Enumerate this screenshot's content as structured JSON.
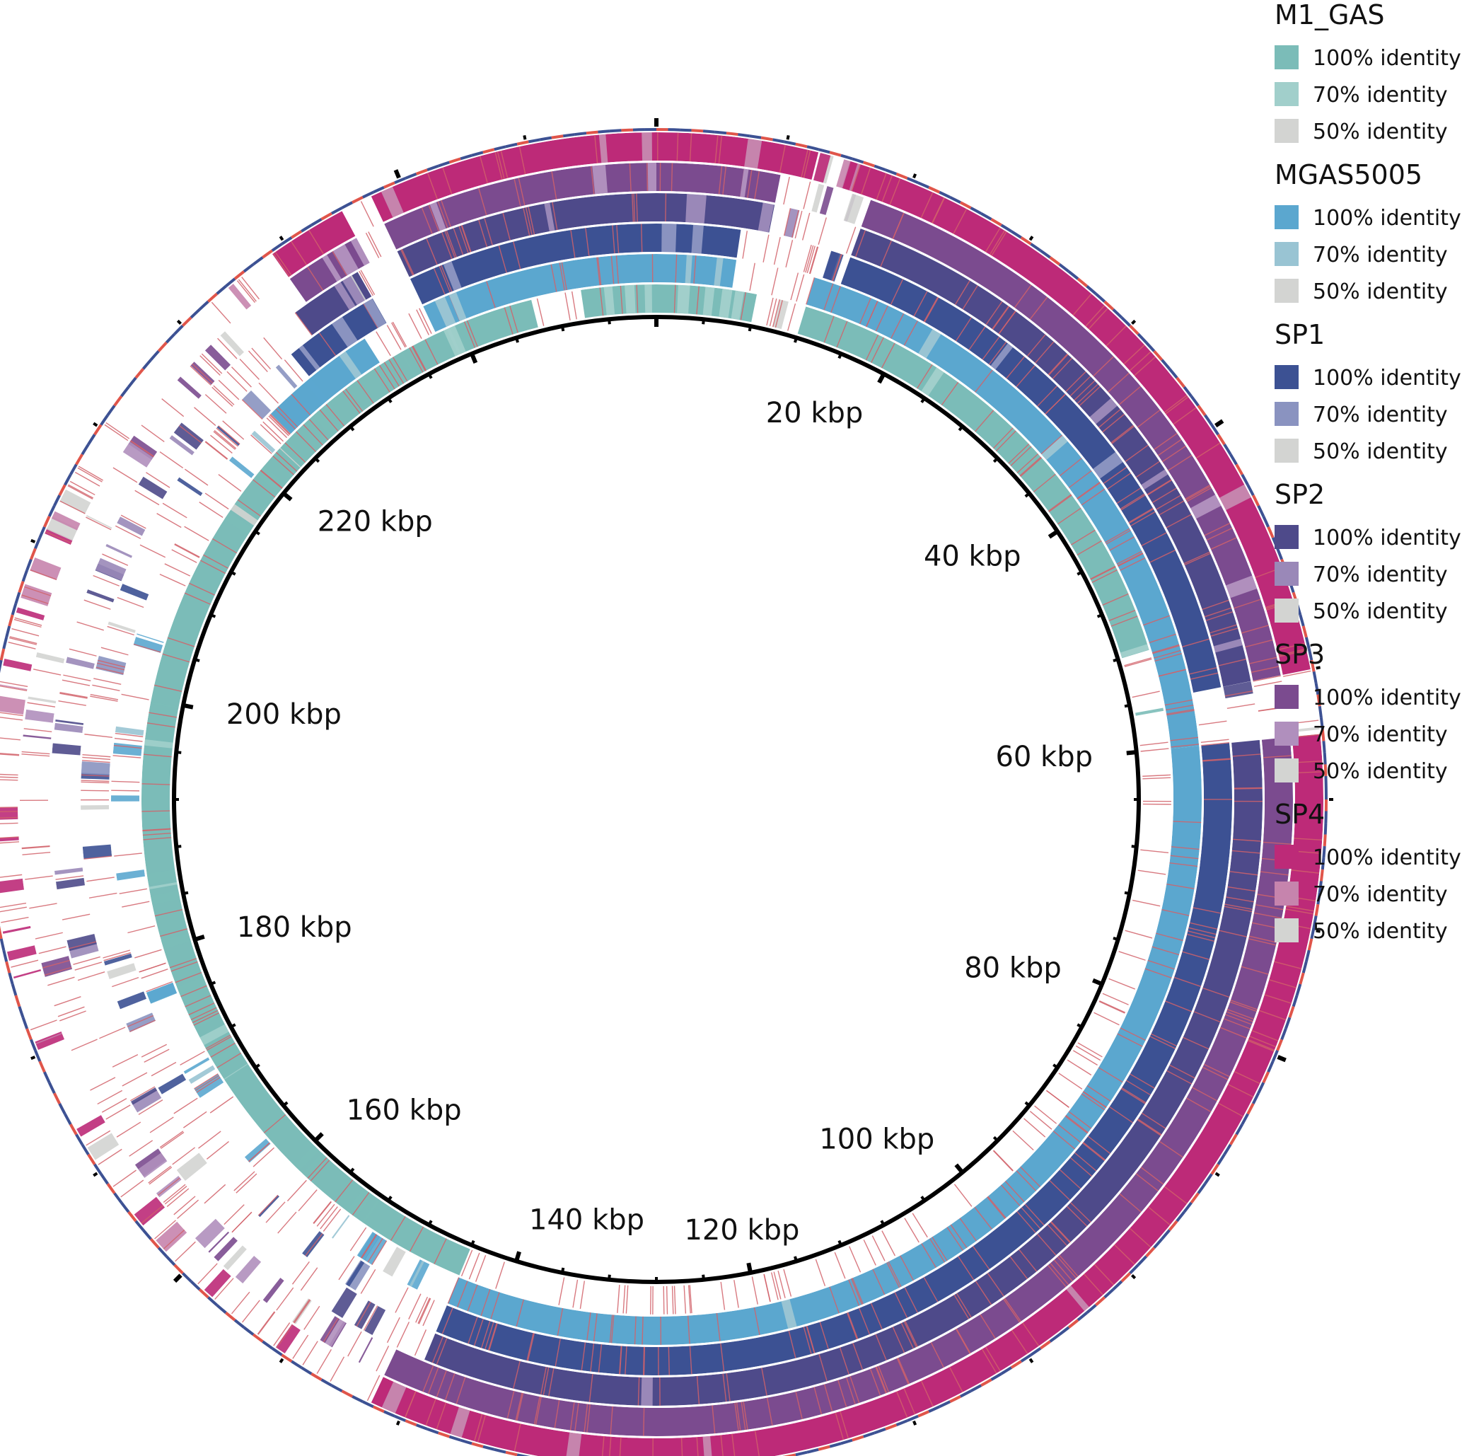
{
  "figure": {
    "type": "circular-blast-ring",
    "genome_size_kbp": 256,
    "ticks": [
      {
        "kbp": 20,
        "label": "20 kbp"
      },
      {
        "kbp": 40,
        "label": "40 kbp"
      },
      {
        "kbp": 60,
        "label": "60 kbp"
      },
      {
        "kbp": 80,
        "label": "80 kbp"
      },
      {
        "kbp": 100,
        "label": "100 kbp"
      },
      {
        "kbp": 120,
        "label": "120 kbp"
      },
      {
        "kbp": 140,
        "label": "140 kbp"
      },
      {
        "kbp": 160,
        "label": "160 kbp"
      },
      {
        "kbp": 180,
        "label": "180 kbp"
      },
      {
        "kbp": 200,
        "label": "200 kbp"
      },
      {
        "kbp": 220,
        "label": "220 kbp"
      }
    ],
    "rings": [
      {
        "name": "M1_GAS",
        "colors": {
          "100": "#7bbcb8",
          "70": "#a1cfcb",
          "50": "#d3d4d2"
        },
        "legend": [
          "100% identity",
          "70% identity",
          "50% identity"
        ],
        "present": [
          [
            0,
            8
          ],
          [
            12,
            52
          ],
          [
            144,
            246
          ],
          [
            250,
            256
          ]
        ]
      },
      {
        "name": "MGAS5005",
        "colors": {
          "100": "#5ba7cf",
          "70": "#99c4d3",
          "50": "#d3d4d2"
        },
        "legend": [
          "100% identity",
          "70% identity",
          "50% identity"
        ],
        "present": [
          [
            0,
            6
          ],
          [
            12,
            60
          ],
          [
            60,
            144
          ],
          [
            224,
            233
          ],
          [
            238,
            256
          ]
        ]
      },
      {
        "name": "SP1",
        "colors": {
          "100": "#3c5193",
          "70": "#8a93c0",
          "50": "#d3d4d2"
        },
        "legend": [
          "100% identity",
          "70% identity",
          "50% identity"
        ],
        "present": [
          [
            0,
            6
          ],
          [
            14,
            56
          ],
          [
            60,
            144
          ],
          [
            228,
            235
          ],
          [
            238,
            256
          ]
        ]
      },
      {
        "name": "SP2",
        "colors": {
          "100": "#4e4a8a",
          "70": "#9a88b8",
          "50": "#d3d4d2"
        },
        "legend": [
          "100% identity",
          "70% identity",
          "50% identity"
        ],
        "present": [
          [
            0,
            8
          ],
          [
            14,
            56
          ],
          [
            60,
            144
          ],
          [
            230,
            235
          ],
          [
            238,
            256
          ]
        ]
      },
      {
        "name": "SP3",
        "colors": {
          "100": "#7b4b8f",
          "70": "#b08fbd",
          "50": "#d3d4d2"
        },
        "legend": [
          "100% identity",
          "70% identity",
          "50% identity"
        ],
        "present": [
          [
            0,
            8
          ],
          [
            14,
            56
          ],
          [
            60,
            146
          ],
          [
            231,
            236
          ],
          [
            238,
            256
          ]
        ]
      },
      {
        "name": "SP4",
        "colors": {
          "100": "#bd2a78",
          "70": "#c684ad",
          "50": "#d3d4d2"
        },
        "legend": [
          "100% identity",
          "70% identity",
          "50% identity"
        ],
        "present": [
          [
            0,
            10
          ],
          [
            12,
            56
          ],
          [
            60,
            146
          ],
          [
            231,
            236
          ],
          [
            238,
            256
          ]
        ]
      }
    ],
    "outer_track_colors": [
      "#e0554a",
      "#3c5193"
    ]
  }
}
